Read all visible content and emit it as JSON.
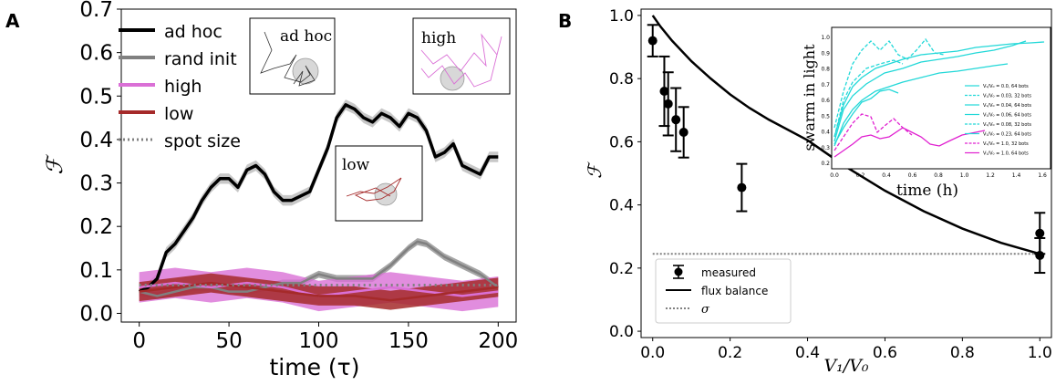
{
  "chart_data": [
    {
      "panel": "A",
      "type": "line",
      "xlabel": "time (τ)",
      "ylabel": "ℱ",
      "xlim": [
        -10,
        210
      ],
      "ylim": [
        -0.02,
        0.7
      ],
      "xticks": [
        0,
        50,
        100,
        150,
        200
      ],
      "yticks": [
        0.0,
        0.1,
        0.2,
        0.3,
        0.4,
        0.5,
        0.6,
        0.7
      ],
      "legend": {
        "placement": "top-left",
        "entries": [
          "ad hoc",
          "rand init",
          "high",
          "low",
          "spot size"
        ]
      },
      "series": [
        {
          "name": "ad hoc",
          "color": "#000000",
          "x": [
            0,
            5,
            10,
            15,
            20,
            25,
            30,
            35,
            40,
            45,
            50,
            55,
            60,
            65,
            70,
            75,
            80,
            85,
            90,
            95,
            100,
            105,
            110,
            115,
            120,
            125,
            130,
            135,
            140,
            145,
            150,
            155,
            160,
            165,
            170,
            175,
            180,
            185,
            190,
            195,
            200
          ],
          "y": [
            0.05,
            0.06,
            0.08,
            0.14,
            0.16,
            0.19,
            0.22,
            0.26,
            0.29,
            0.31,
            0.31,
            0.29,
            0.33,
            0.34,
            0.32,
            0.28,
            0.26,
            0.26,
            0.27,
            0.28,
            0.33,
            0.38,
            0.45,
            0.48,
            0.47,
            0.45,
            0.44,
            0.46,
            0.45,
            0.43,
            0.46,
            0.45,
            0.42,
            0.36,
            0.37,
            0.39,
            0.34,
            0.33,
            0.32,
            0.36,
            0.36
          ]
        },
        {
          "name": "rand init",
          "color": "#808080",
          "x": [
            0,
            10,
            20,
            30,
            40,
            50,
            60,
            70,
            80,
            90,
            100,
            110,
            120,
            130,
            140,
            150,
            155,
            160,
            170,
            180,
            190,
            200
          ],
          "y": [
            0.05,
            0.04,
            0.05,
            0.06,
            0.06,
            0.05,
            0.05,
            0.06,
            0.07,
            0.07,
            0.09,
            0.08,
            0.08,
            0.08,
            0.11,
            0.15,
            0.165,
            0.16,
            0.13,
            0.11,
            0.09,
            0.06
          ]
        },
        {
          "name": "high",
          "color": "#da70d6",
          "x": [
            0,
            20,
            40,
            60,
            80,
            100,
            120,
            140,
            160,
            180,
            200
          ],
          "y": [
            0.06,
            0.07,
            0.06,
            0.07,
            0.06,
            0.04,
            0.05,
            0.06,
            0.05,
            0.04,
            0.05
          ]
        },
        {
          "name": "low",
          "color": "#a52a2a",
          "x": [
            0,
            20,
            40,
            60,
            80,
            100,
            120,
            140,
            160,
            180,
            200
          ],
          "y": [
            0.05,
            0.06,
            0.07,
            0.06,
            0.05,
            0.04,
            0.04,
            0.03,
            0.04,
            0.05,
            0.06
          ]
        },
        {
          "name": "spot size",
          "color": "#808080",
          "style": "dotted",
          "x": [
            0,
            200
          ],
          "y": [
            0.065,
            0.065
          ]
        }
      ],
      "insets": [
        "ad hoc",
        "high",
        "low"
      ]
    },
    {
      "panel": "B",
      "type": "scatter",
      "xlabel": "V₁/V₀",
      "ylabel": "ℱ",
      "xlim": [
        -0.03,
        1.03
      ],
      "ylim": [
        -0.02,
        1.02
      ],
      "xticks": [
        0.0,
        0.2,
        0.4,
        0.6,
        0.8,
        1.0
      ],
      "yticks": [
        0.0,
        0.2,
        0.4,
        0.6,
        0.8,
        1.0
      ],
      "legend": {
        "placement": "bottom-left",
        "entries": [
          "measured",
          "flux balance",
          "σ"
        ]
      },
      "series": [
        {
          "name": "measured",
          "color": "#000000",
          "x": [
            0.0,
            0.03,
            0.04,
            0.06,
            0.08,
            0.23,
            1.0,
            1.0
          ],
          "y": [
            0.92,
            0.76,
            0.72,
            0.67,
            0.63,
            0.455,
            0.31,
            0.24
          ],
          "err": [
            0.05,
            0.11,
            0.1,
            0.1,
            0.08,
            0.075,
            0.065,
            0.055
          ]
        },
        {
          "name": "flux balance",
          "color": "#000000",
          "x": [
            0.0,
            0.02,
            0.05,
            0.1,
            0.15,
            0.2,
            0.25,
            0.3,
            0.4,
            0.5,
            0.6,
            0.7,
            0.8,
            0.9,
            1.0
          ],
          "y": [
            1.0,
            0.965,
            0.92,
            0.855,
            0.8,
            0.75,
            0.707,
            0.67,
            0.605,
            0.52,
            0.445,
            0.38,
            0.325,
            0.28,
            0.245
          ]
        },
        {
          "name": "σ",
          "color": "#808080",
          "style": "dotted",
          "x": [
            0.0,
            1.0
          ],
          "y": [
            0.245,
            0.245
          ]
        }
      ],
      "inset": {
        "xlabel": "time (h)",
        "ylabel": "swarm in light",
        "xticks": [
          "0.0",
          "0.2",
          "0.4",
          "0.6",
          "0.8",
          "1.0",
          "1.2",
          "1.4",
          "1.6"
        ],
        "yticks": [
          "0.2",
          "0.3",
          "0.4",
          "0.5",
          "0.6",
          "0.7",
          "0.8",
          "0.9",
          "1.0"
        ],
        "legend": [
          "V₁/V₀ = 0.0, 64 bots",
          "V₁/V₀ = 0.03, 32 bots",
          "V₁/V₀ = 0.04, 64 bots",
          "V₁/V₀ = 0.06, 64 bots",
          "V₁/V₀ = 0.08, 32 bots",
          "V₁/V₀ = 0.23, 64 bots",
          "V₁/V₀ = 1.0, 32 bots",
          "V₁/V₀ = 1.0, 64 bots"
        ]
      }
    }
  ],
  "panels": {
    "a": "A",
    "b": "B"
  },
  "colors": {
    "cyan": "#22d8d8",
    "magenta": "#e020d0",
    "brown": "#a52a2a",
    "pink": "#da70d6",
    "grey": "#808080"
  }
}
